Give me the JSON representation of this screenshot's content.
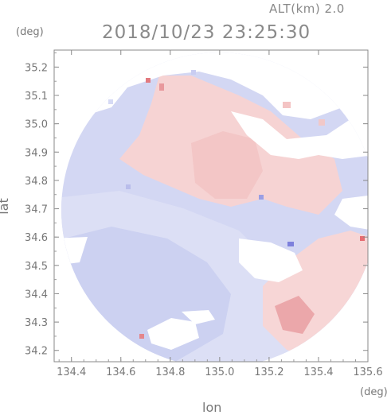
{
  "header": {
    "altitude_label": "ALT(km) 2.0",
    "timestamp": "2018/10/23 23:25:30"
  },
  "axes": {
    "x_label": "lon",
    "y_label": "lat",
    "x_unit": "(deg)",
    "y_unit": "(deg)",
    "x_range": [
      134.33,
      135.6
    ],
    "y_range": [
      34.16,
      35.26
    ],
    "x_ticks": [
      "134.4",
      "134.6",
      "134.8",
      "135.0",
      "135.2",
      "135.4",
      "135.6"
    ],
    "y_ticks": [
      "34.2",
      "34.3",
      "34.4",
      "34.5",
      "34.6",
      "34.7",
      "34.8",
      "34.9",
      "35.0",
      "35.1",
      "35.2"
    ]
  },
  "colors": {
    "receding": "#f5c8c8",
    "approaching": "#cdd2f2",
    "strong_receding": "#e06a70",
    "strong_approaching": "#6b6fd8",
    "frame": "#888888"
  }
}
